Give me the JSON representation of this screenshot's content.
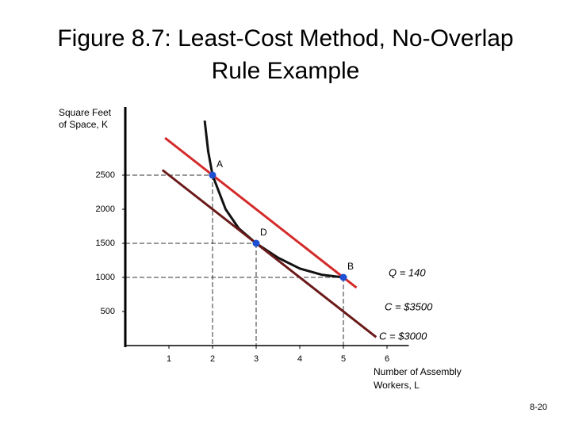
{
  "title": "Figure 8.7: Least-Cost Method, No-Overlap Rule Example",
  "slide_number": "8-20",
  "chart_data": {
    "type": "line",
    "y_label": [
      "Square Feet",
      "of Space, K"
    ],
    "x_label": [
      "Number of Assembly",
      "Workers, L"
    ],
    "xlim": [
      0,
      6.5
    ],
    "ylim": [
      0,
      3500
    ],
    "xticks": [
      1,
      2,
      3,
      4,
      5,
      6
    ],
    "yticks": [
      500,
      1000,
      1500,
      2000,
      2500
    ],
    "series": [
      {
        "name": "Q = 140",
        "color": "#111111",
        "x": [
          1.82,
          1.9,
          2,
          2.3,
          2.6,
          3,
          3.5,
          4,
          4.5,
          5
        ],
        "values": [
          3300,
          2850,
          2500,
          2000,
          1720,
          1500,
          1290,
          1130,
          1040,
          1000
        ]
      },
      {
        "name": "C = $3500",
        "color": "#d42a2a",
        "x": [
          0.91,
          5.3
        ],
        "values": [
          3045,
          850
        ]
      },
      {
        "name": "C = $3000",
        "color": "#6b1a1a",
        "x": [
          0.85,
          5.75
        ],
        "values": [
          2575,
          125
        ]
      }
    ],
    "points": [
      {
        "label": "A",
        "x": 2,
        "y": 2500
      },
      {
        "label": "D",
        "x": 3,
        "y": 1500
      },
      {
        "label": "B",
        "x": 5,
        "y": 1000
      }
    ],
    "point_color": "#1f4fd1"
  }
}
